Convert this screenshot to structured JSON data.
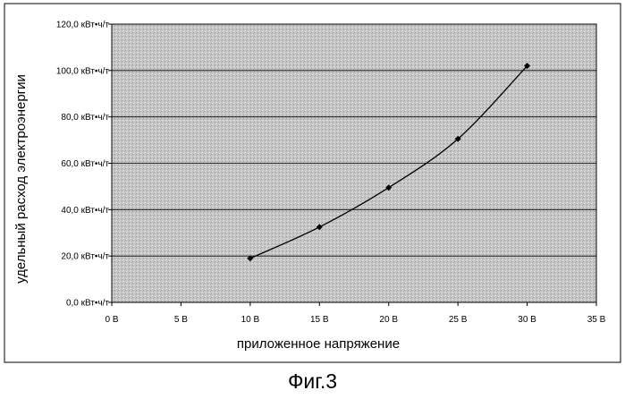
{
  "chart_data": {
    "type": "line",
    "title": "",
    "xlabel": "приложенное напряжение",
    "ylabel": "удельный расход электроэнергии",
    "xlim": [
      0,
      35
    ],
    "ylim": [
      0,
      120
    ],
    "x_ticks": [
      0,
      5,
      10,
      15,
      20,
      25,
      30,
      35
    ],
    "x_tick_labels": [
      "0 В",
      "5 В",
      "10 В",
      "15 В",
      "20 В",
      "25 В",
      "30 В",
      "35 В"
    ],
    "y_ticks": [
      0,
      20,
      40,
      60,
      80,
      100,
      120
    ],
    "y_tick_labels": [
      "0,0 кВт•ч/т",
      "20,0 кВт•ч/т",
      "40,0 кВт•ч/т",
      "60,0 кВт•ч/т",
      "80,0 кВт•ч/т",
      "100,0 кВт•ч/т",
      "120,0 кВт•ч/т"
    ],
    "grid": "horizontal",
    "legend": "none",
    "series": [
      {
        "x": [
          10,
          15,
          20,
          25,
          30
        ],
        "y": [
          19,
          32.5,
          49.5,
          70.5,
          102
        ]
      }
    ]
  },
  "caption": "Фиг.3",
  "colors": {
    "plot_area": "#c6c6c6",
    "line": "#000000",
    "grid": "#000000"
  }
}
